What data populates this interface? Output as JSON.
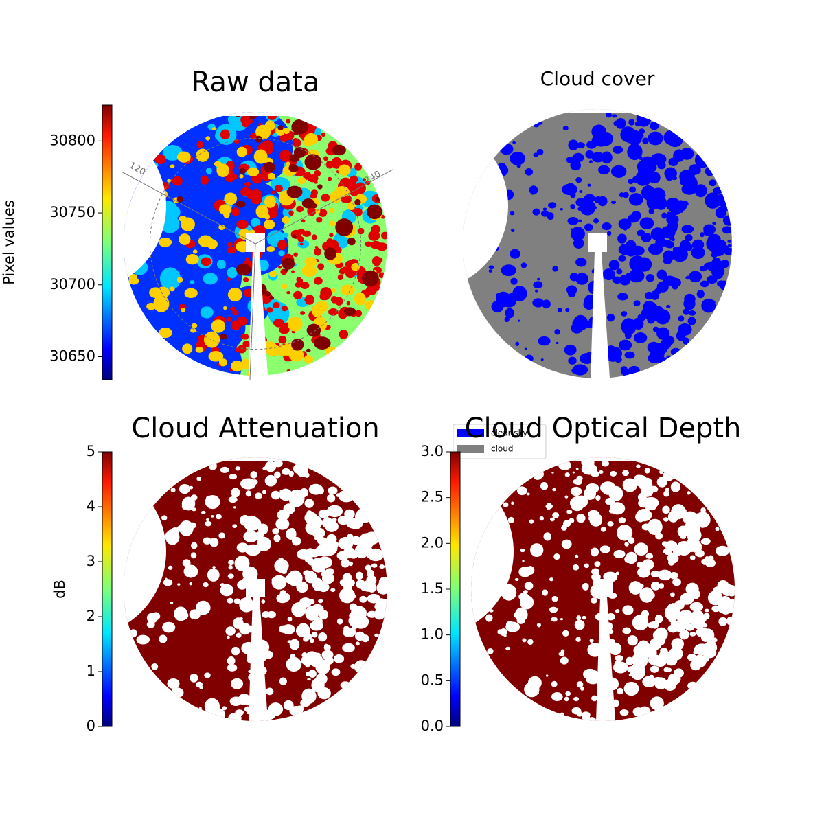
{
  "chart_data": [
    {
      "type": "image",
      "title": "Raw data",
      "polar_labels": [
        "120",
        "240"
      ],
      "colorbar": {
        "label": "Pixel values",
        "lim": [
          30634,
          30825
        ],
        "ticks": [
          30650,
          30700,
          30750,
          30800
        ]
      }
    },
    {
      "type": "image",
      "title": "Cloud cover",
      "legend": [
        {
          "name": "clear sky",
          "color": "#0000ff"
        },
        {
          "name": "cloud",
          "color": "#808080"
        }
      ]
    },
    {
      "type": "image",
      "title": "Cloud Attenuation",
      "colorbar": {
        "label": "dB",
        "lim": [
          0,
          5
        ],
        "ticks": [
          0,
          1,
          2,
          3,
          4,
          5
        ]
      }
    },
    {
      "type": "image",
      "title": "Cloud Optical Depth",
      "colorbar": {
        "lim": [
          0,
          3
        ],
        "ticks": [
          {
            "value": 0,
            "label": "0.0"
          },
          0.5,
          {
            "value": 1,
            "label": "1.0"
          },
          1.5,
          {
            "value": 2,
            "label": "2.0"
          },
          2.5,
          {
            "value": 3,
            "label": "3.0"
          }
        ]
      }
    }
  ]
}
